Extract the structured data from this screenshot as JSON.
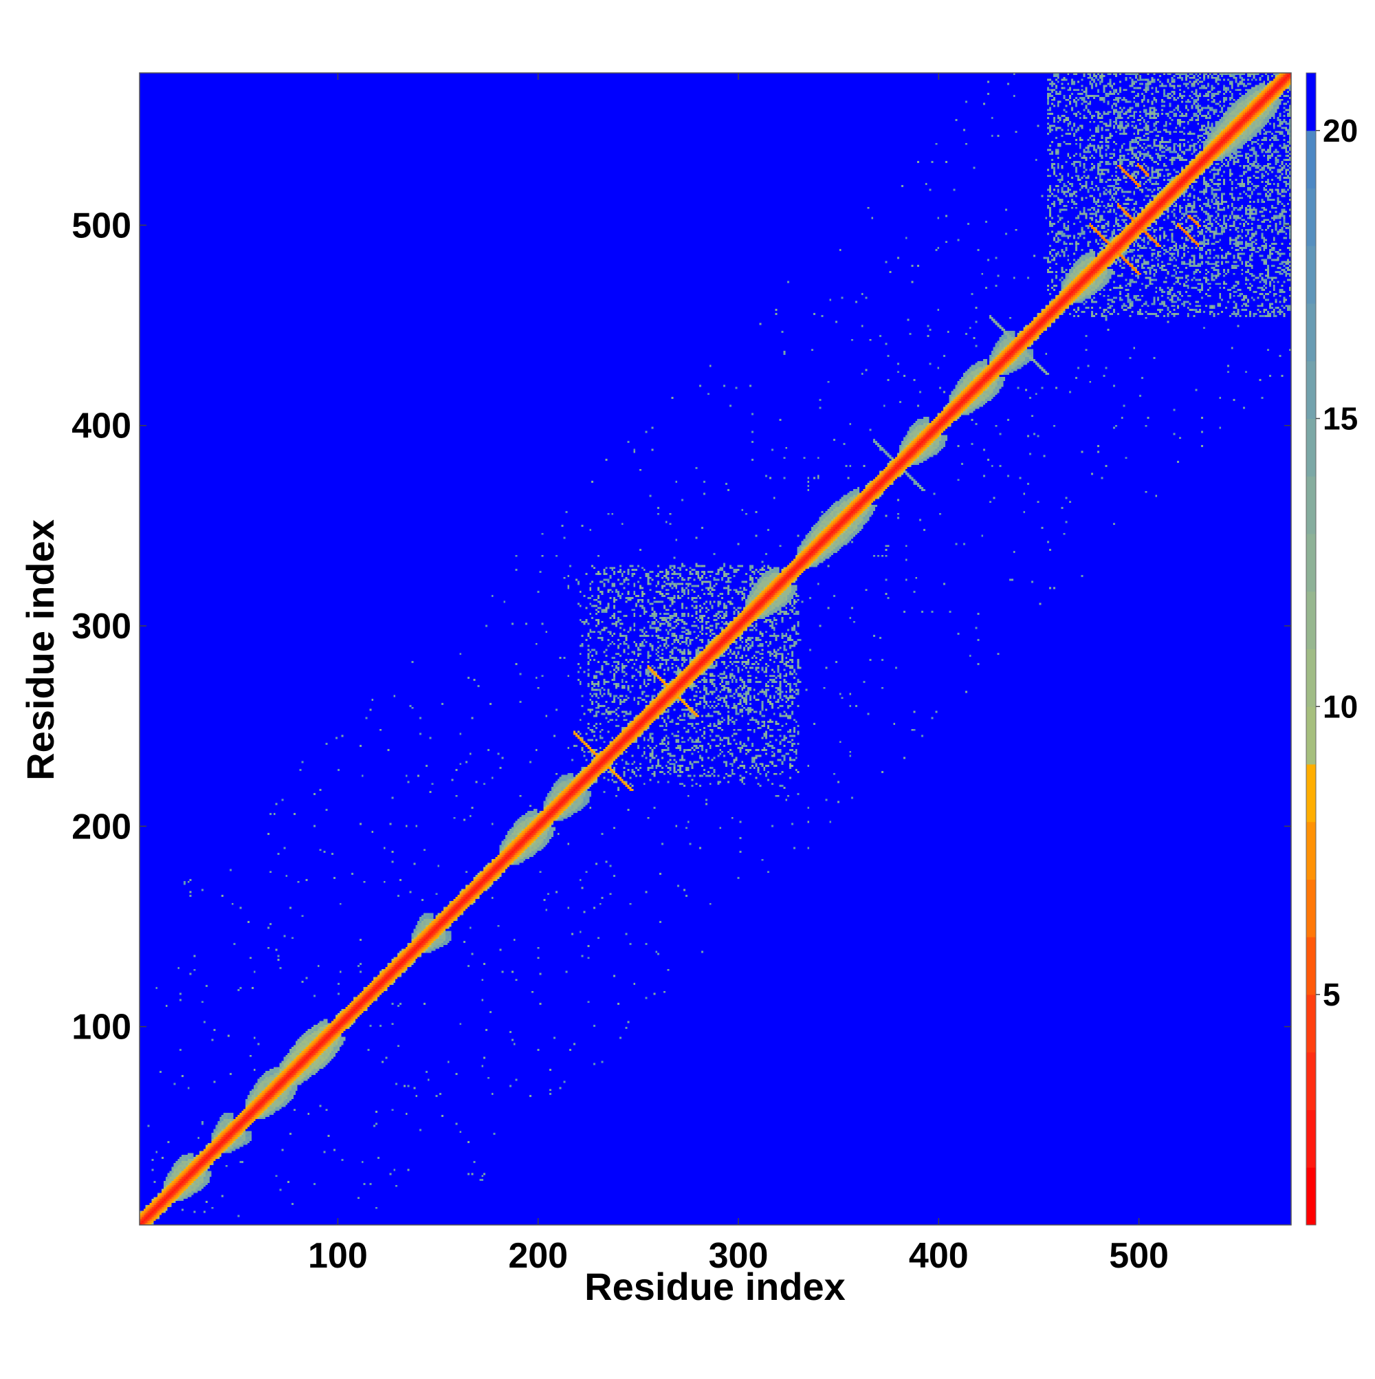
{
  "chart_data": {
    "type": "heatmap",
    "title": "",
    "xlabel": "Residue index",
    "ylabel": "Residue index",
    "x_range": [
      1,
      576
    ],
    "y_range": [
      1,
      576
    ],
    "x_ticks": [
      100,
      200,
      300,
      400,
      500
    ],
    "y_ticks": [
      100,
      200,
      300,
      400,
      500
    ],
    "x_tick_labels": [
      "100",
      "200",
      "300",
      "400",
      "500"
    ],
    "y_tick_labels": [
      "100",
      "200",
      "300",
      "400",
      "500"
    ],
    "grid": false,
    "legend": "none",
    "background_value": 21,
    "colorbar": {
      "placement": "right",
      "range": [
        1,
        21
      ],
      "ticks": [
        5,
        10,
        15,
        20
      ],
      "tick_labels": [
        "5",
        "10",
        "15",
        "20"
      ],
      "colors": [
        {
          "from": 1,
          "to": 2,
          "color": "#ff0000"
        },
        {
          "from": 2,
          "to": 3,
          "color": "#ff1a0f"
        },
        {
          "from": 3,
          "to": 4,
          "color": "#ff2e12"
        },
        {
          "from": 4,
          "to": 5,
          "color": "#ff4010"
        },
        {
          "from": 5,
          "to": 6,
          "color": "#ff5a0a"
        },
        {
          "from": 6,
          "to": 7,
          "color": "#ff7808"
        },
        {
          "from": 7,
          "to": 8,
          "color": "#ff9205"
        },
        {
          "from": 8,
          "to": 9,
          "color": "#ffae00"
        },
        {
          "from": 9,
          "to": 10,
          "color": "#a6bf7e"
        },
        {
          "from": 10,
          "to": 11,
          "color": "#a0bc86"
        },
        {
          "from": 11,
          "to": 12,
          "color": "#97b78f"
        },
        {
          "from": 12,
          "to": 13,
          "color": "#8eb297"
        },
        {
          "from": 13,
          "to": 14,
          "color": "#86ad9e"
        },
        {
          "from": 14,
          "to": 15,
          "color": "#7ca8a6"
        },
        {
          "from": 15,
          "to": 16,
          "color": "#73a2ad"
        },
        {
          "from": 16,
          "to": 17,
          "color": "#699cb3"
        },
        {
          "from": 17,
          "to": 18,
          "color": "#6096b9"
        },
        {
          "from": 18,
          "to": 19,
          "color": "#568fbf"
        },
        {
          "from": 19,
          "to": 20,
          "color": "#4d88c4"
        },
        {
          "from": 20,
          "to": 21,
          "color": "#0000ff"
        }
      ]
    },
    "features": {
      "diagonal_band": {
        "from": 1,
        "to": 576,
        "value": 2
      },
      "helix_blobs": [
        {
          "center": 20,
          "length": 14,
          "value": 11
        },
        {
          "center": 42,
          "length": 10,
          "value": 12
        },
        {
          "center": 62,
          "length": 16,
          "value": 11
        },
        {
          "center": 82,
          "length": 24,
          "value": 10
        },
        {
          "center": 142,
          "length": 10,
          "value": 12
        },
        {
          "center": 190,
          "length": 18,
          "value": 11
        },
        {
          "center": 210,
          "length": 14,
          "value": 12
        },
        {
          "center": 312,
          "length": 16,
          "value": 11
        },
        {
          "center": 345,
          "length": 30,
          "value": 11
        },
        {
          "center": 388,
          "length": 14,
          "value": 11
        },
        {
          "center": 415,
          "length": 18,
          "value": 11
        },
        {
          "center": 432,
          "length": 12,
          "value": 12
        },
        {
          "center": 470,
          "length": 16,
          "value": 11
        },
        {
          "center": 548,
          "length": 30,
          "value": 11
        }
      ],
      "cross_contacts": [
        {
          "x": 232,
          "y": 232,
          "size": 14,
          "value": 7
        },
        {
          "x": 267,
          "y": 267,
          "size": 12,
          "value": 7
        },
        {
          "x": 380,
          "y": 380,
          "size": 12,
          "value": 14
        },
        {
          "x": 440,
          "y": 440,
          "size": 14,
          "value": 12
        },
        {
          "x": 488,
          "y": 488,
          "size": 12,
          "value": 6
        },
        {
          "x": 500,
          "y": 500,
          "size": 10,
          "value": 6
        }
      ],
      "contact_clusters": [
        {
          "x_range": [
            225,
            330
          ],
          "y_range": [
            220,
            330
          ],
          "density": 0.18,
          "value": 12
        },
        {
          "x_range": [
            260,
            330
          ],
          "y_range": [
            225,
            330
          ],
          "density": 0.14,
          "value": 11
        },
        {
          "x_range": [
            455,
            576
          ],
          "y_range": [
            455,
            576
          ],
          "density": 0.22,
          "value": 12
        },
        {
          "x_range": [
            485,
            576
          ],
          "y_range": [
            455,
            576
          ],
          "density": 0.16,
          "value": 13
        }
      ],
      "off_diagonal_strands": [
        {
          "from": [
            490,
            530
          ],
          "to": [
            500,
            520
          ],
          "value": 6
        },
        {
          "from": [
            525,
            505
          ],
          "to": [
            530,
            500
          ],
          "value": 6
        }
      ]
    }
  }
}
